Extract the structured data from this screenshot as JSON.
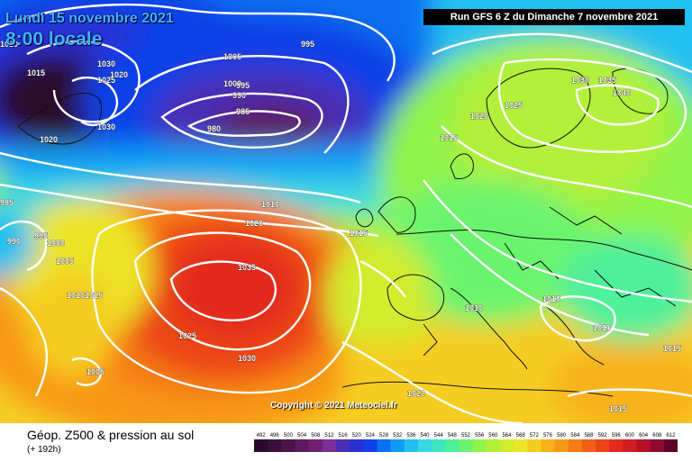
{
  "header": {
    "date": "Lundi 15 novembre 2021",
    "local_time": "8:00 locale",
    "run_info": "Run GFS 6 Z du Dimanche 7 novembre 2021"
  },
  "copyright": "Copyright © 2021 Meteociel.fr",
  "footer": {
    "title": "Géop. Z500 & pression au sol",
    "subtitle": "(+ 192h)"
  },
  "legend": {
    "ticks": [
      "492",
      "496",
      "500",
      "504",
      "508",
      "512",
      "516",
      "520",
      "524",
      "528",
      "532",
      "536",
      "540",
      "544",
      "548",
      "552",
      "556",
      "560",
      "564",
      "568",
      "572",
      "576",
      "580",
      "584",
      "588",
      "592",
      "596",
      "600",
      "604",
      "608",
      "612"
    ],
    "colors": [
      "#2a0a2a",
      "#3a0f3a",
      "#4a134a",
      "#5e1a5e",
      "#6f2070",
      "#7a2f9a",
      "#4a2fb5",
      "#2a2fd0",
      "#1040e6",
      "#0a70f0",
      "#109cf5",
      "#22c0f0",
      "#3ad6e2",
      "#3fe6c0",
      "#4ff09a",
      "#6af46e",
      "#90f44c",
      "#b2f03a",
      "#d2ec2e",
      "#ece428",
      "#f5cd22",
      "#f8b21c",
      "#f89818",
      "#f67c16",
      "#f26016",
      "#ec4418",
      "#e22a1c",
      "#d01c22",
      "#b4122a",
      "#8e0a30",
      "#600028"
    ]
  },
  "pressure_labels": [
    "1010",
    "1015",
    "1020",
    "1030",
    "1025",
    "1020",
    "1030",
    "1020",
    "995",
    "1005",
    "1000",
    "995",
    "990",
    "985",
    "980",
    "1020",
    "1025",
    "1030",
    "1035",
    "1040",
    "1015",
    "1010",
    "1020",
    "1015",
    "985",
    "990",
    "995",
    "1000",
    "1005",
    "1010",
    "1015",
    "1035",
    "1025",
    "1030",
    "1005",
    "1010",
    "1010",
    "1010",
    "1020",
    "1015",
    "1015"
  ],
  "map_icons": {
    "pressure_contours": "isobar-lines",
    "coastlines": "coastline-lines"
  }
}
